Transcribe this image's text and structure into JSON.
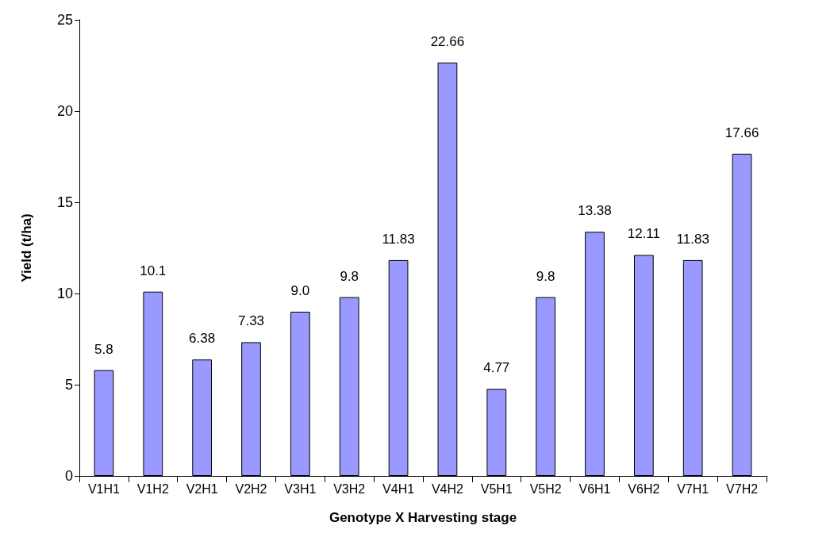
{
  "chart_data": {
    "type": "bar",
    "xlabel": "Genotype X Harvesting stage",
    "ylabel": "Yield (t/ha)",
    "categories": [
      "V1H1",
      "V1H2",
      "V2H1",
      "V2H2",
      "V3H1",
      "V3H2",
      "V4H1",
      "V4H2",
      "V5H1",
      "V5H2",
      "V6H1",
      "V6H2",
      "V7H1",
      "V7H2"
    ],
    "values": [
      5.8,
      10.1,
      6.38,
      7.33,
      9.0,
      9.8,
      11.83,
      22.66,
      4.77,
      9.8,
      13.38,
      12.11,
      11.83,
      17.66
    ],
    "value_labels": [
      "5.8",
      "10.1",
      "6.38",
      "7.33",
      "9.0",
      "9.8",
      "11.83",
      "22.66",
      "4.77",
      "9.8",
      "13.38",
      "12.11",
      "11.83",
      "17.66"
    ],
    "color": "#9999ff",
    "ylim": [
      0,
      25
    ],
    "yticks": [
      0,
      5,
      10,
      15,
      20,
      25
    ],
    "grid": false
  }
}
